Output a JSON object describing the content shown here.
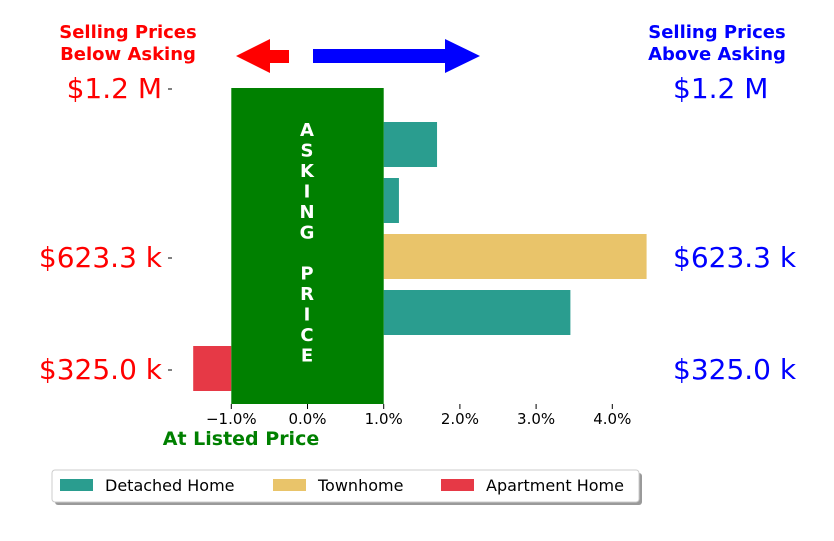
{
  "header": {
    "left_line1": "Selling Prices",
    "left_line2": "Below Asking",
    "right_line1": "Selling Prices",
    "right_line2": "Above Asking"
  },
  "colors": {
    "below": "#ff0000",
    "above": "#0000ff",
    "asking_block": "#008000",
    "at_listed": "#008000"
  },
  "asking_label": [
    "A",
    "S",
    "K",
    "I",
    "N",
    "G",
    "",
    "P",
    "R",
    "I",
    "C",
    "E"
  ],
  "at_listed_label": "At Listed Price",
  "price_labels": [
    {
      "text": "$1.2 M",
      "y_rank": 0
    },
    {
      "text": "$623.3 k",
      "y_rank": 1
    },
    {
      "text": "$325.0 k",
      "y_rank": 2
    }
  ],
  "chart_data": {
    "type": "bar",
    "orientation": "horizontal",
    "x_tick_labels": [
      "−1.0%",
      "0.0%",
      "1.0%",
      "2.0%",
      "3.0%",
      "4.0%"
    ],
    "x_ticks": [
      -1,
      0,
      1,
      2,
      3,
      4
    ],
    "xlim": [
      -1.5,
      4.5
    ],
    "asking_band": [
      -1.0,
      1.0
    ],
    "bars": [
      {
        "series": "Detached Home",
        "value": 1.7
      },
      {
        "series": "Detached Home",
        "value": 1.2
      },
      {
        "series": "Townhome",
        "value": 4.45
      },
      {
        "series": "Detached Home",
        "value": 3.45
      },
      {
        "series": "Apartment Home",
        "value": -1.5
      }
    ],
    "series": [
      {
        "name": "Detached Home",
        "color": "#2a9d8f"
      },
      {
        "name": "Townhome",
        "color": "#e9c46a"
      },
      {
        "name": "Apartment Home",
        "color": "#e63946"
      }
    ],
    "legend_position": "bottom"
  }
}
